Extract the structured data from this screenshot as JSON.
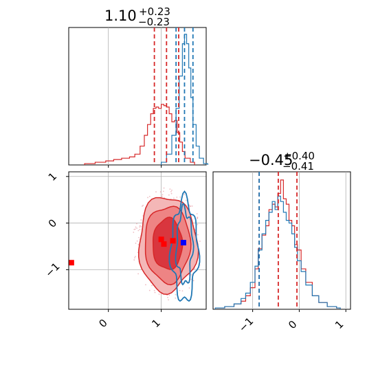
{
  "chart_data": {
    "type": "corner",
    "colors": {
      "red": "#d62728",
      "blue": "#1f77b4",
      "red_fill": "#ee8c8c",
      "red_dark": "#d9363e"
    },
    "panels": [
      {
        "panel": "hist-param1",
        "title": {
          "value": "1.10",
          "upper": "+0.23",
          "lower": "−0.23"
        },
        "xlim": [
          -0.75,
          1.85
        ],
        "grid": true,
        "series": [
          {
            "name": "",
            "color": "#d62728",
            "bins": [
              [
                -0.45,
                0.01
              ],
              [
                -0.25,
                0.02
              ],
              [
                -0.05,
                0.03
              ],
              [
                0.1,
                0.04
              ],
              [
                0.25,
                0.05
              ],
              [
                0.4,
                0.06
              ],
              [
                0.5,
                0.08
              ],
              [
                0.6,
                0.14
              ],
              [
                0.68,
                0.22
              ],
              [
                0.74,
                0.3
              ],
              [
                0.8,
                0.38
              ],
              [
                0.85,
                0.42
              ],
              [
                0.9,
                0.43
              ],
              [
                0.95,
                0.42
              ],
              [
                1.0,
                0.45
              ],
              [
                1.05,
                0.44
              ],
              [
                1.1,
                0.43
              ],
              [
                1.15,
                0.38
              ],
              [
                1.2,
                0.32
              ],
              [
                1.25,
                0.33
              ],
              [
                1.3,
                0.24
              ],
              [
                1.35,
                0.17
              ],
              [
                1.4,
                0.1
              ],
              [
                1.45,
                0.05
              ],
              [
                1.55,
                0.02
              ]
            ],
            "quantiles": [
              0.87,
              1.1,
              1.33
            ]
          },
          {
            "name": "",
            "color": "#1f77b4",
            "bins": [
              [
                1.0,
                0.02
              ],
              [
                1.1,
                0.08
              ],
              [
                1.2,
                0.22
              ],
              [
                1.28,
                0.42
              ],
              [
                1.34,
                0.66
              ],
              [
                1.4,
                0.9
              ],
              [
                1.44,
                0.97
              ],
              [
                1.48,
                0.9
              ],
              [
                1.52,
                0.72
              ],
              [
                1.56,
                0.5
              ],
              [
                1.6,
                0.3
              ],
              [
                1.66,
                0.14
              ],
              [
                1.72,
                0.05
              ],
              [
                1.8,
                0.01
              ]
            ],
            "quantiles": [
              1.28,
              1.44,
              1.6
            ]
          }
        ]
      },
      {
        "panel": "scatter-2d",
        "xlim": [
          -0.75,
          1.85
        ],
        "ylim": [
          -1.85,
          1.1
        ],
        "xticks": [
          "0",
          "1"
        ],
        "xtick_values": [
          0,
          1
        ],
        "yticks": [
          "1",
          "0",
          "−1"
        ],
        "ytick_values": [
          1,
          0,
          -1
        ],
        "grid": true,
        "red_contours": [
          {
            "level": "outer",
            "cx": 1.12,
            "cy": -0.45,
            "rx": 0.55,
            "ry": 1.02
          },
          {
            "level": "middle",
            "cx": 1.12,
            "cy": -0.45,
            "rx": 0.43,
            "ry": 0.82
          },
          {
            "level": "inner",
            "cx": 1.12,
            "cy": -0.45,
            "rx": 0.28,
            "ry": 0.55
          }
        ],
        "blue_contours": [
          {
            "level": "outer",
            "cx": 1.44,
            "cy": -0.58,
            "rx": 0.25,
            "ry": 1.05
          },
          {
            "level": "inner",
            "cx": 1.44,
            "cy": -0.5,
            "rx": 0.15,
            "ry": 0.78
          }
        ],
        "markers": [
          {
            "color": "#ff0000",
            "x": 1.0,
            "y": -0.35
          },
          {
            "color": "#ff0000",
            "x": 1.05,
            "y": -0.45
          },
          {
            "color": "#ff0000",
            "x": 1.22,
            "y": -0.38
          },
          {
            "color": "#0000ff",
            "x": 1.42,
            "y": -0.42
          },
          {
            "color": "#ff0000",
            "x": -0.7,
            "y": -0.85
          }
        ]
      },
      {
        "panel": "hist-param2",
        "title": {
          "value": "−0.45",
          "upper": "+0.40",
          "lower": "−0.41"
        },
        "xlim": [
          -1.85,
          1.1
        ],
        "xticks": [
          "−1",
          "0",
          "1"
        ],
        "xtick_values": [
          -1,
          0,
          1
        ],
        "grid": true,
        "series": [
          {
            "name": "",
            "color": "#d62728",
            "bins": [
              [
                -1.8,
                0.01
              ],
              [
                -1.6,
                0.02
              ],
              [
                -1.4,
                0.04
              ],
              [
                -1.25,
                0.06
              ],
              [
                -1.15,
                0.1
              ],
              [
                -1.05,
                0.16
              ],
              [
                -0.95,
                0.3
              ],
              [
                -0.88,
                0.45
              ],
              [
                -0.8,
                0.55
              ],
              [
                -0.72,
                0.62
              ],
              [
                -0.65,
                0.74
              ],
              [
                -0.58,
                0.78
              ],
              [
                -0.52,
                0.76
              ],
              [
                -0.46,
                0.86
              ],
              [
                -0.4,
                0.96
              ],
              [
                -0.34,
                0.82
              ],
              [
                -0.28,
                0.78
              ],
              [
                -0.22,
                0.66
              ],
              [
                -0.16,
                0.62
              ],
              [
                -0.1,
                0.48
              ],
              [
                -0.04,
                0.44
              ],
              [
                0.04,
                0.3
              ],
              [
                0.14,
                0.2
              ],
              [
                0.28,
                0.1
              ],
              [
                0.42,
                0.05
              ],
              [
                0.6,
                0.02
              ],
              [
                0.8,
                0.01
              ]
            ],
            "quantiles": [
              -0.86,
              -0.45,
              -0.05
            ]
          },
          {
            "name": "",
            "color": "#1f77b4",
            "bins": [
              [
                -1.8,
                0.01
              ],
              [
                -1.6,
                0.02
              ],
              [
                -1.4,
                0.04
              ],
              [
                -1.25,
                0.08
              ],
              [
                -1.15,
                0.12
              ],
              [
                -1.05,
                0.2
              ],
              [
                -0.95,
                0.32
              ],
              [
                -0.88,
                0.44
              ],
              [
                -0.8,
                0.56
              ],
              [
                -0.72,
                0.66
              ],
              [
                -0.65,
                0.72
              ],
              [
                -0.58,
                0.8
              ],
              [
                -0.52,
                0.74
              ],
              [
                -0.46,
                0.84
              ],
              [
                -0.4,
                0.8
              ],
              [
                -0.34,
                0.72
              ],
              [
                -0.28,
                0.66
              ],
              [
                -0.22,
                0.64
              ],
              [
                -0.16,
                0.56
              ],
              [
                -0.1,
                0.46
              ],
              [
                -0.04,
                0.36
              ],
              [
                0.04,
                0.28
              ],
              [
                0.14,
                0.18
              ],
              [
                0.28,
                0.1
              ],
              [
                0.42,
                0.05
              ],
              [
                0.6,
                0.02
              ],
              [
                0.8,
                0.01
              ]
            ],
            "quantiles": [
              -0.86
            ]
          }
        ]
      }
    ]
  }
}
